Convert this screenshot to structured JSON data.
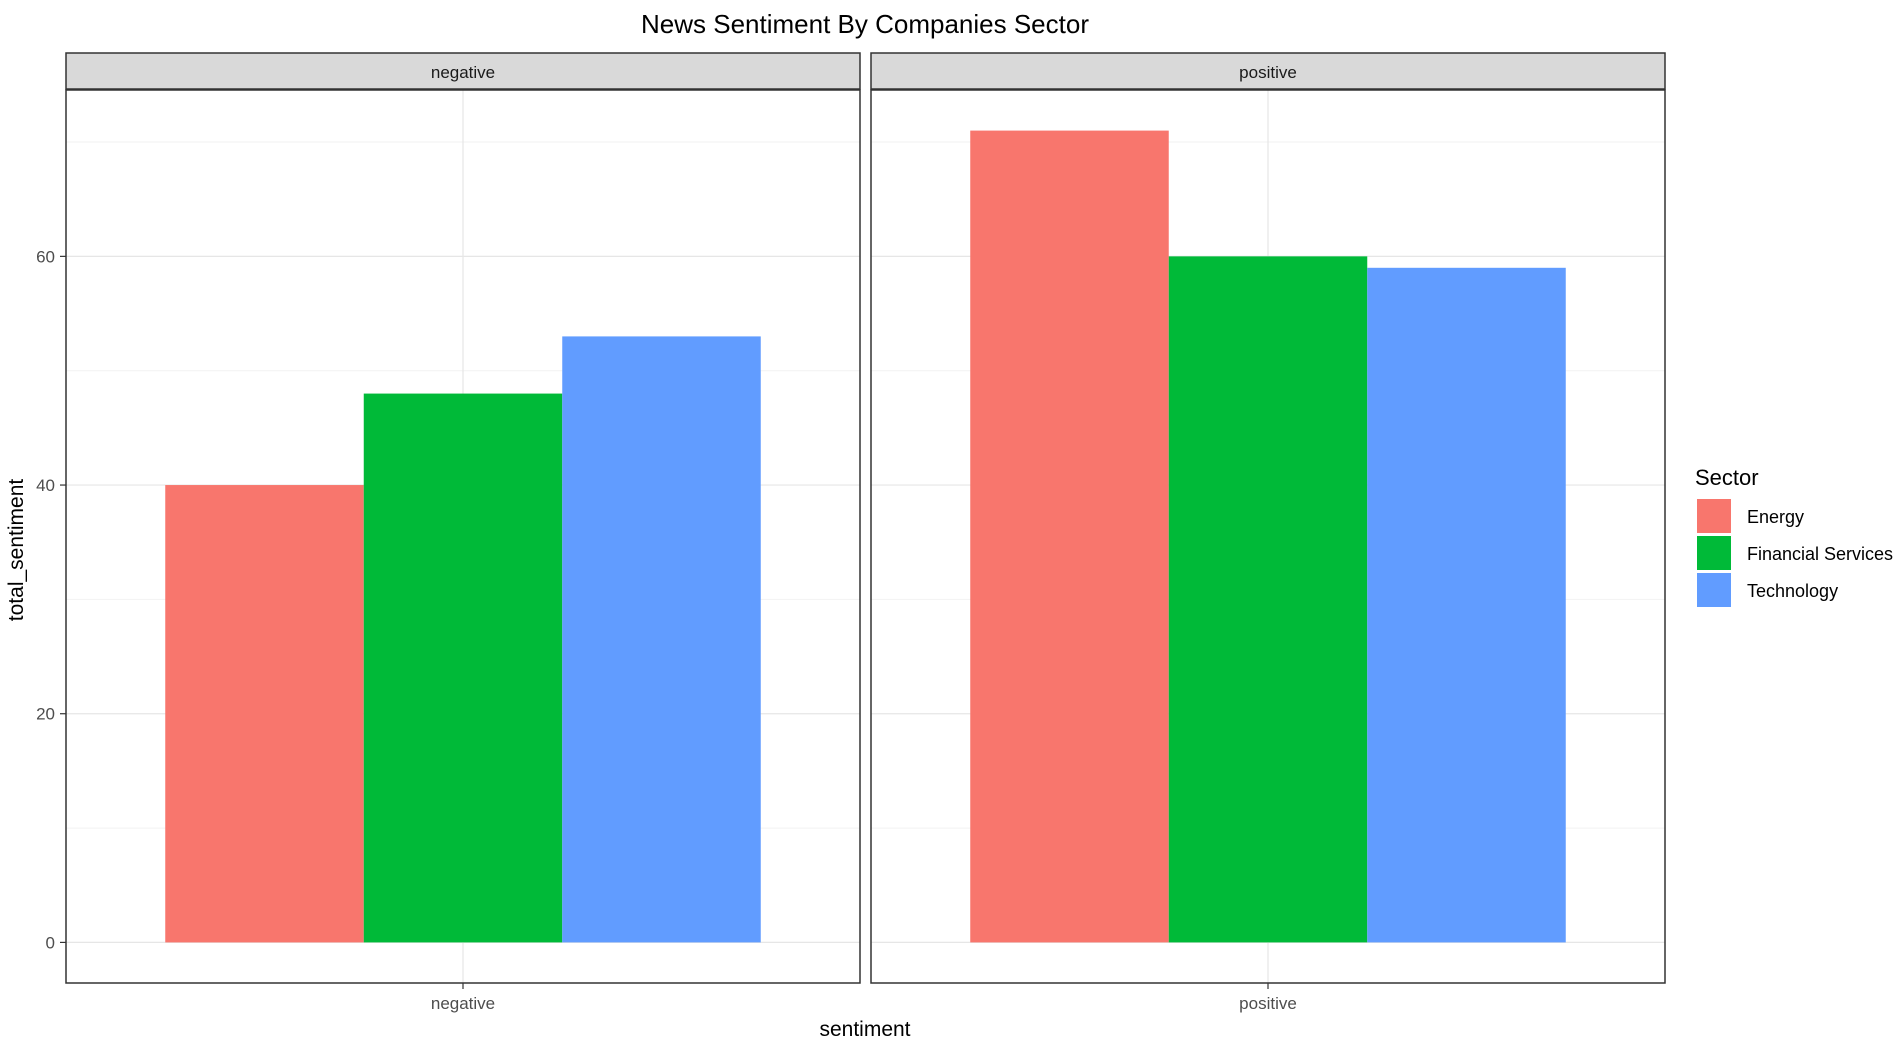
{
  "chart_data": {
    "type": "bar",
    "title": "News Sentiment By Companies Sector",
    "xlabel": "sentiment",
    "ylabel": "total_sentiment",
    "ylim": [
      -3.55,
      74.55
    ],
    "yticks": [
      0,
      20,
      40,
      60
    ],
    "grid": true,
    "facets": [
      "negative",
      "positive"
    ],
    "categories": [
      "negative",
      "positive"
    ],
    "series": [
      {
        "name": "Energy",
        "color": "#F8766D",
        "values": [
          40,
          71
        ]
      },
      {
        "name": "Financial Services",
        "color": "#00BA38",
        "values": [
          48,
          60
        ]
      },
      {
        "name": "Technology",
        "color": "#619CFF",
        "values": [
          53,
          59
        ]
      }
    ],
    "legend": {
      "title": "Sector",
      "position": "right"
    }
  }
}
